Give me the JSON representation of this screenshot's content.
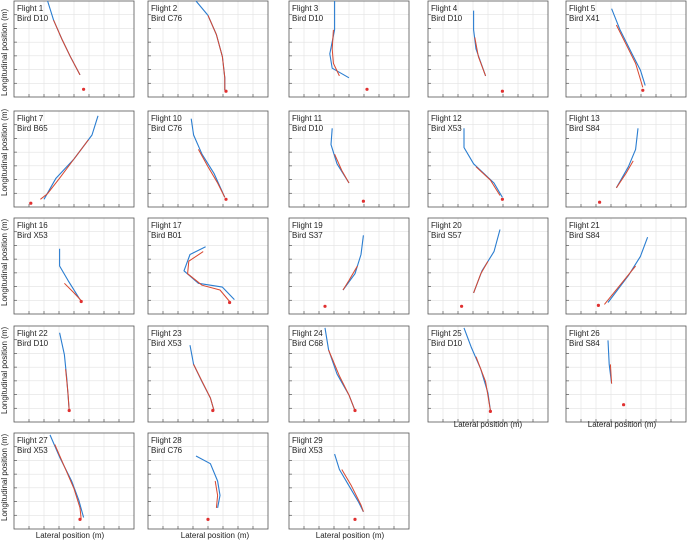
{
  "figure": {
    "ylabel": "Longitudinal position (m)",
    "xlabel": "Lateral position (m)"
  },
  "colors": {
    "track_blue": "#2a7dd0",
    "track_red": "#d8472f",
    "marker_red": "#e03030",
    "grid": "#e2e2e2",
    "frame": "#555555"
  },
  "chart_data": [
    {
      "type": "line",
      "title": "Flight 1",
      "subtitle": "Bird D10",
      "grid": true,
      "xlim": [
        0,
        1
      ],
      "ylim": [
        0,
        1
      ],
      "blue": [
        [
          0.28,
          1.0
        ],
        [
          0.33,
          0.8
        ],
        [
          0.4,
          0.6
        ],
        [
          0.47,
          0.42
        ],
        [
          0.55,
          0.23
        ]
      ],
      "red": [
        [
          0.33,
          0.8
        ],
        [
          0.4,
          0.6
        ],
        [
          0.47,
          0.42
        ],
        [
          0.55,
          0.23
        ]
      ],
      "marker": [
        0.58,
        0.08
      ]
    },
    {
      "type": "line",
      "title": "Flight 2",
      "subtitle": "Bird C76",
      "grid": true,
      "xlim": [
        0,
        1
      ],
      "ylim": [
        0,
        1
      ],
      "blue": [
        [
          0.4,
          1.0
        ],
        [
          0.5,
          0.85
        ],
        [
          0.57,
          0.65
        ],
        [
          0.62,
          0.42
        ],
        [
          0.64,
          0.2
        ],
        [
          0.64,
          0.07
        ]
      ],
      "red": [
        [
          0.5,
          0.85
        ],
        [
          0.57,
          0.65
        ],
        [
          0.62,
          0.42
        ],
        [
          0.64,
          0.2
        ],
        [
          0.64,
          0.07
        ]
      ],
      "marker": [
        0.65,
        0.06
      ]
    },
    {
      "type": "line",
      "title": "Flight 3",
      "subtitle": "Bird D10",
      "grid": true,
      "xlim": [
        0,
        1
      ],
      "ylim": [
        0,
        1
      ],
      "blue": [
        [
          0.38,
          1.0
        ],
        [
          0.38,
          0.7
        ],
        [
          0.34,
          0.45
        ],
        [
          0.36,
          0.3
        ],
        [
          0.5,
          0.2
        ]
      ],
      "red": [
        [
          0.37,
          0.7
        ],
        [
          0.36,
          0.5
        ],
        [
          0.37,
          0.35
        ],
        [
          0.42,
          0.22
        ]
      ],
      "marker": [
        0.65,
        0.08
      ]
    },
    {
      "type": "line",
      "title": "Flight 4",
      "subtitle": "Bird D10",
      "grid": true,
      "xlim": [
        0,
        1
      ],
      "ylim": [
        0,
        1
      ],
      "blue": [
        [
          0.38,
          0.9
        ],
        [
          0.38,
          0.7
        ],
        [
          0.4,
          0.5
        ],
        [
          0.48,
          0.22
        ]
      ],
      "red": [
        [
          0.39,
          0.62
        ],
        [
          0.42,
          0.42
        ],
        [
          0.48,
          0.22
        ]
      ],
      "marker": [
        0.62,
        0.06
      ]
    },
    {
      "type": "line",
      "title": "Flight 5",
      "subtitle": "Bird X41",
      "grid": true,
      "xlim": [
        0,
        1
      ],
      "ylim": [
        0,
        1
      ],
      "blue": [
        [
          0.38,
          0.92
        ],
        [
          0.45,
          0.7
        ],
        [
          0.55,
          0.45
        ],
        [
          0.62,
          0.28
        ],
        [
          0.66,
          0.12
        ]
      ],
      "red": [
        [
          0.42,
          0.75
        ],
        [
          0.5,
          0.55
        ],
        [
          0.58,
          0.35
        ],
        [
          0.64,
          0.1
        ]
      ],
      "marker": [
        0.64,
        0.07
      ]
    },
    {
      "type": "line",
      "title": "Flight 7",
      "subtitle": "Bird B65",
      "grid": true,
      "xlim": [
        0,
        1
      ],
      "ylim": [
        0,
        1
      ],
      "blue": [
        [
          0.7,
          0.95
        ],
        [
          0.65,
          0.75
        ],
        [
          0.5,
          0.5
        ],
        [
          0.35,
          0.3
        ],
        [
          0.25,
          0.08
        ]
      ],
      "red": [
        [
          0.62,
          0.7
        ],
        [
          0.5,
          0.5
        ],
        [
          0.38,
          0.3
        ],
        [
          0.28,
          0.14
        ],
        [
          0.22,
          0.08
        ]
      ],
      "marker": [
        0.14,
        0.04
      ]
    },
    {
      "type": "line",
      "title": "Flight 10",
      "subtitle": "Bird C76",
      "grid": true,
      "xlim": [
        0,
        1
      ],
      "ylim": [
        0,
        1
      ],
      "blue": [
        [
          0.36,
          0.92
        ],
        [
          0.38,
          0.75
        ],
        [
          0.45,
          0.55
        ],
        [
          0.55,
          0.35
        ],
        [
          0.64,
          0.1
        ]
      ],
      "red": [
        [
          0.42,
          0.6
        ],
        [
          0.5,
          0.42
        ],
        [
          0.58,
          0.25
        ],
        [
          0.64,
          0.1
        ]
      ],
      "marker": [
        0.65,
        0.08
      ]
    },
    {
      "type": "line",
      "title": "Flight 11",
      "subtitle": "Bird D10",
      "grid": true,
      "xlim": [
        0,
        1
      ],
      "ylim": [
        0,
        1
      ],
      "blue": [
        [
          0.36,
          0.82
        ],
        [
          0.35,
          0.65
        ],
        [
          0.4,
          0.45
        ],
        [
          0.5,
          0.25
        ]
      ],
      "red": [
        [
          0.38,
          0.55
        ],
        [
          0.44,
          0.38
        ],
        [
          0.5,
          0.25
        ]
      ],
      "marker": [
        0.62,
        0.06
      ]
    },
    {
      "type": "line",
      "title": "Flight 12",
      "subtitle": "Bird X53",
      "grid": true,
      "xlim": [
        0,
        1
      ],
      "ylim": [
        0,
        1
      ],
      "blue": [
        [
          0.3,
          0.82
        ],
        [
          0.3,
          0.62
        ],
        [
          0.38,
          0.45
        ],
        [
          0.55,
          0.25
        ],
        [
          0.62,
          0.1
        ]
      ],
      "red": [
        [
          0.4,
          0.42
        ],
        [
          0.52,
          0.28
        ],
        [
          0.6,
          0.12
        ]
      ],
      "marker": [
        0.62,
        0.08
      ]
    },
    {
      "type": "line",
      "title": "Flight 13",
      "subtitle": "Bird S84",
      "grid": true,
      "xlim": [
        0,
        1
      ],
      "ylim": [
        0,
        1
      ],
      "blue": [
        [
          0.6,
          0.82
        ],
        [
          0.58,
          0.6
        ],
        [
          0.52,
          0.42
        ],
        [
          0.42,
          0.2
        ]
      ],
      "red": [
        [
          0.56,
          0.48
        ],
        [
          0.5,
          0.35
        ],
        [
          0.42,
          0.2
        ]
      ],
      "marker": [
        0.28,
        0.05
      ]
    },
    {
      "type": "line",
      "title": "Flight 16",
      "subtitle": "Bird X53",
      "grid": true,
      "xlim": [
        0,
        1
      ],
      "ylim": [
        0,
        1
      ],
      "blue": [
        [
          0.38,
          0.68
        ],
        [
          0.38,
          0.5
        ],
        [
          0.45,
          0.35
        ],
        [
          0.55,
          0.15
        ]
      ],
      "red": [
        [
          0.42,
          0.32
        ],
        [
          0.5,
          0.22
        ],
        [
          0.56,
          0.14
        ]
      ],
      "marker": [
        0.56,
        0.13
      ]
    },
    {
      "type": "line",
      "title": "Flight 17",
      "subtitle": "Bird B01",
      "grid": true,
      "xlim": [
        0,
        1
      ],
      "ylim": [
        0,
        1
      ],
      "blue": [
        [
          0.48,
          0.7
        ],
        [
          0.35,
          0.62
        ],
        [
          0.3,
          0.45
        ],
        [
          0.42,
          0.32
        ],
        [
          0.62,
          0.28
        ],
        [
          0.72,
          0.15
        ]
      ],
      "red": [
        [
          0.46,
          0.65
        ],
        [
          0.34,
          0.55
        ],
        [
          0.33,
          0.42
        ],
        [
          0.45,
          0.3
        ],
        [
          0.6,
          0.25
        ],
        [
          0.68,
          0.13
        ]
      ],
      "marker": [
        0.68,
        0.12
      ]
    },
    {
      "type": "line",
      "title": "Flight 19",
      "subtitle": "Bird S37",
      "grid": true,
      "xlim": [
        0,
        1
      ],
      "ylim": [
        0,
        1
      ],
      "blue": [
        [
          0.62,
          0.82
        ],
        [
          0.6,
          0.62
        ],
        [
          0.55,
          0.42
        ],
        [
          0.45,
          0.25
        ]
      ],
      "red": [
        [
          0.57,
          0.5
        ],
        [
          0.5,
          0.35
        ],
        [
          0.45,
          0.25
        ]
      ],
      "marker": [
        0.3,
        0.08
      ]
    },
    {
      "type": "line",
      "title": "Flight 20",
      "subtitle": "Bird S57",
      "grid": true,
      "xlim": [
        0,
        1
      ],
      "ylim": [
        0,
        1
      ],
      "blue": [
        [
          0.6,
          0.88
        ],
        [
          0.55,
          0.65
        ],
        [
          0.45,
          0.45
        ],
        [
          0.38,
          0.22
        ]
      ],
      "red": [
        [
          0.5,
          0.55
        ],
        [
          0.44,
          0.42
        ],
        [
          0.38,
          0.22
        ]
      ],
      "marker": [
        0.28,
        0.08
      ]
    },
    {
      "type": "line",
      "title": "Flight 21",
      "subtitle": "Bird S84",
      "grid": true,
      "xlim": [
        0,
        1
      ],
      "ylim": [
        0,
        1
      ],
      "blue": [
        [
          0.68,
          0.8
        ],
        [
          0.62,
          0.6
        ],
        [
          0.52,
          0.4
        ],
        [
          0.35,
          0.12
        ]
      ],
      "red": [
        [
          0.58,
          0.5
        ],
        [
          0.45,
          0.3
        ],
        [
          0.32,
          0.1
        ]
      ],
      "marker": [
        0.27,
        0.09
      ]
    },
    {
      "type": "line",
      "title": "Flight 22",
      "subtitle": "Bird D10",
      "grid": true,
      "xlim": [
        0,
        1
      ],
      "ylim": [
        0,
        1
      ],
      "blue": [
        [
          0.38,
          0.93
        ],
        [
          0.42,
          0.7
        ],
        [
          0.44,
          0.45
        ],
        [
          0.46,
          0.12
        ]
      ],
      "red": [
        [
          0.43,
          0.55
        ],
        [
          0.45,
          0.3
        ],
        [
          0.46,
          0.12
        ]
      ],
      "marker": [
        0.46,
        0.12
      ]
    },
    {
      "type": "line",
      "title": "Flight 23",
      "subtitle": "Bird X53",
      "grid": true,
      "xlim": [
        0,
        1
      ],
      "ylim": [
        0,
        1
      ],
      "blue": [
        [
          0.35,
          0.8
        ],
        [
          0.38,
          0.6
        ],
        [
          0.45,
          0.42
        ],
        [
          0.52,
          0.25
        ],
        [
          0.55,
          0.12
        ]
      ],
      "red": [
        [
          0.38,
          0.6
        ],
        [
          0.46,
          0.4
        ],
        [
          0.52,
          0.25
        ],
        [
          0.55,
          0.12
        ]
      ],
      "marker": [
        0.54,
        0.12
      ]
    },
    {
      "type": "line",
      "title": "Flight 24",
      "subtitle": "Bird C68",
      "grid": true,
      "xlim": [
        0,
        1
      ],
      "ylim": [
        0,
        1
      ],
      "blue": [
        [
          0.3,
          0.98
        ],
        [
          0.33,
          0.75
        ],
        [
          0.4,
          0.5
        ],
        [
          0.5,
          0.28
        ],
        [
          0.55,
          0.12
        ]
      ],
      "red": [
        [
          0.33,
          0.75
        ],
        [
          0.42,
          0.48
        ],
        [
          0.5,
          0.28
        ],
        [
          0.55,
          0.12
        ]
      ],
      "marker": [
        0.55,
        0.12
      ]
    },
    {
      "type": "line",
      "title": "Flight 25",
      "subtitle": "Bird D10",
      "grid": true,
      "xlim": [
        0,
        1
      ],
      "ylim": [
        0,
        1
      ],
      "blue": [
        [
          0.3,
          0.98
        ],
        [
          0.36,
          0.78
        ],
        [
          0.44,
          0.55
        ],
        [
          0.5,
          0.3
        ],
        [
          0.52,
          0.12
        ]
      ],
      "red": [
        [
          0.4,
          0.68
        ],
        [
          0.48,
          0.42
        ],
        [
          0.52,
          0.12
        ]
      ],
      "marker": [
        0.52,
        0.11
      ]
    },
    {
      "type": "line",
      "title": "Flight 26",
      "subtitle": "Bird S84",
      "grid": true,
      "xlim": [
        0,
        1
      ],
      "ylim": [
        0,
        1
      ],
      "blue": [
        [
          0.35,
          0.85
        ],
        [
          0.36,
          0.6
        ],
        [
          0.38,
          0.4
        ]
      ],
      "red": [
        [
          0.37,
          0.6
        ],
        [
          0.38,
          0.4
        ]
      ],
      "marker": [
        0.48,
        0.18
      ]
    },
    {
      "type": "line",
      "title": "Flight 27",
      "subtitle": "Bird X53",
      "grid": true,
      "xlim": [
        0,
        1
      ],
      "ylim": [
        0,
        1
      ],
      "blue": [
        [
          0.3,
          0.98
        ],
        [
          0.38,
          0.75
        ],
        [
          0.48,
          0.5
        ],
        [
          0.54,
          0.3
        ],
        [
          0.58,
          0.12
        ]
      ],
      "red": [
        [
          0.34,
          0.88
        ],
        [
          0.42,
          0.65
        ],
        [
          0.5,
          0.42
        ],
        [
          0.55,
          0.22
        ],
        [
          0.56,
          0.1
        ]
      ],
      "marker": [
        0.55,
        0.1
      ]
    },
    {
      "type": "line",
      "title": "Flight 28",
      "subtitle": "Bird C76",
      "grid": true,
      "xlim": [
        0,
        1
      ],
      "ylim": [
        0,
        1
      ],
      "blue": [
        [
          0.4,
          0.76
        ],
        [
          0.52,
          0.68
        ],
        [
          0.58,
          0.5
        ],
        [
          0.6,
          0.35
        ],
        [
          0.58,
          0.22
        ]
      ],
      "red": [
        [
          0.56,
          0.5
        ],
        [
          0.58,
          0.35
        ],
        [
          0.57,
          0.22
        ]
      ],
      "marker": [
        0.5,
        0.1
      ]
    },
    {
      "type": "line",
      "title": "Flight 29",
      "subtitle": "Bird X53",
      "grid": true,
      "xlim": [
        0,
        1
      ],
      "ylim": [
        0,
        1
      ],
      "blue": [
        [
          0.38,
          0.78
        ],
        [
          0.42,
          0.62
        ],
        [
          0.5,
          0.45
        ],
        [
          0.58,
          0.28
        ],
        [
          0.62,
          0.18
        ]
      ],
      "red": [
        [
          0.44,
          0.62
        ],
        [
          0.52,
          0.45
        ],
        [
          0.6,
          0.25
        ],
        [
          0.62,
          0.18
        ]
      ],
      "marker": [
        0.55,
        0.1
      ]
    }
  ]
}
